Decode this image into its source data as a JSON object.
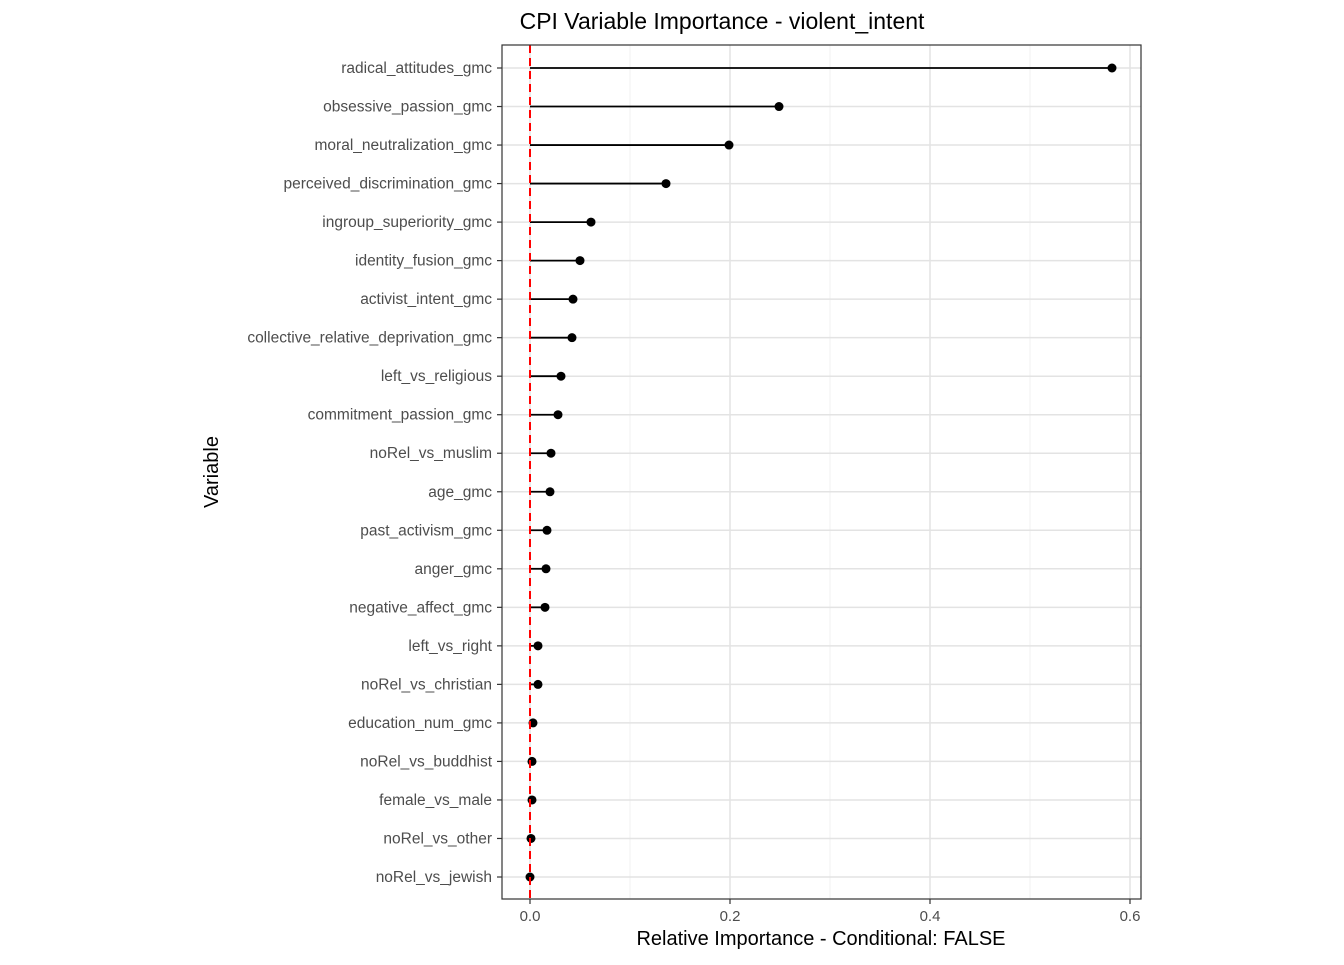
{
  "chart_data": {
    "type": "lollipop",
    "title": "CPI Variable Importance - violent_intent",
    "xlabel": "Relative Importance - Conditional: FALSE",
    "ylabel": "Variable",
    "xlim": [
      -0.028,
      0.611
    ],
    "xticks": [
      0.0,
      0.2,
      0.4,
      0.6
    ],
    "xtick_labels": [
      "0.0",
      "0.2",
      "0.4",
      "0.6"
    ],
    "reference_line": {
      "value": 0,
      "color": "#ff0000",
      "style": "dashed"
    },
    "grid": true,
    "categories": [
      "radical_attitudes_gmc",
      "obsessive_passion_gmc",
      "moral_neutralization_gmc",
      "perceived_discrimination_gmc",
      "ingroup_superiority_gmc",
      "identity_fusion_gmc",
      "activist_intent_gmc",
      "collective_relative_deprivation_gmc",
      "left_vs_religious",
      "commitment_passion_gmc",
      "noRel_vs_muslim",
      "age_gmc",
      "past_activism_gmc",
      "anger_gmc",
      "negative_affect_gmc",
      "left_vs_right",
      "noRel_vs_christian",
      "education_num_gmc",
      "noRel_vs_buddhist",
      "female_vs_male",
      "noRel_vs_other",
      "noRel_vs_jewish"
    ],
    "values": [
      0.582,
      0.249,
      0.199,
      0.136,
      0.061,
      0.05,
      0.043,
      0.042,
      0.031,
      0.028,
      0.021,
      0.02,
      0.017,
      0.016,
      0.015,
      0.008,
      0.008,
      0.003,
      0.002,
      0.002,
      0.001,
      0.0
    ]
  }
}
